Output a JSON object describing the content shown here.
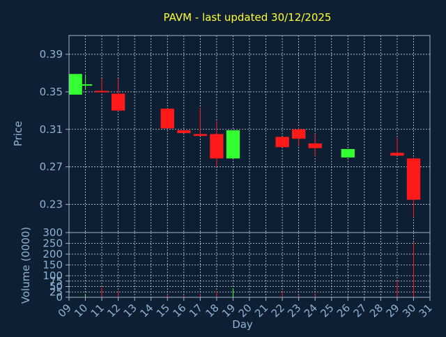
{
  "title": "PAVM - last updated 30/12/2025",
  "colors": {
    "background": "#0f1f33",
    "text": "#8fb3d6",
    "title": "#ffff33",
    "axis": "#9fb4cc",
    "grid": "#cfd8e3",
    "up": "#33ff33",
    "down": "#ff1a1a"
  },
  "chart_data": [
    {
      "type": "candlestick",
      "ylabel": "Price",
      "ylim": [
        0.2,
        0.41
      ],
      "yticks": [
        "0.23",
        "0.27",
        "0.31",
        "0.35",
        "0.39"
      ],
      "grid": true,
      "candles": [
        {
          "x": 9,
          "open": 0.347,
          "high": 0.369,
          "low": 0.347,
          "close": 0.369
        },
        {
          "x": 10,
          "open": 0.357,
          "high": 0.368,
          "low": 0.352,
          "close": 0.358
        },
        {
          "x": 11,
          "open": 0.351,
          "high": 0.364,
          "low": 0.349,
          "close": 0.35
        },
        {
          "x": 12,
          "open": 0.348,
          "high": 0.364,
          "low": 0.329,
          "close": 0.33
        },
        {
          "x": 15,
          "open": 0.332,
          "high": 0.332,
          "low": 0.311,
          "close": 0.311
        },
        {
          "x": 16,
          "open": 0.309,
          "high": 0.31,
          "low": 0.306,
          "close": 0.306
        },
        {
          "x": 17,
          "open": 0.305,
          "high": 0.333,
          "low": 0.303,
          "close": 0.303
        },
        {
          "x": 18,
          "open": 0.305,
          "high": 0.319,
          "low": 0.27,
          "close": 0.279
        },
        {
          "x": 19,
          "open": 0.279,
          "high": 0.309,
          "low": 0.279,
          "close": 0.309
        },
        {
          "x": 22,
          "open": 0.302,
          "high": 0.302,
          "low": 0.291,
          "close": 0.291
        },
        {
          "x": 23,
          "open": 0.31,
          "high": 0.312,
          "low": 0.292,
          "close": 0.3
        },
        {
          "x": 24,
          "open": 0.295,
          "high": 0.305,
          "low": 0.281,
          "close": 0.29
        },
        {
          "x": 26,
          "open": 0.28,
          "high": 0.289,
          "low": 0.28,
          "close": 0.289
        },
        {
          "x": 29,
          "open": 0.285,
          "high": 0.301,
          "low": 0.282,
          "close": 0.282
        },
        {
          "x": 30,
          "open": 0.279,
          "high": 0.279,
          "low": 0.216,
          "close": 0.235
        }
      ]
    },
    {
      "type": "bar",
      "ylabel": "Volume (0000)",
      "xlabel": "Day",
      "ylim": [
        0,
        300
      ],
      "yticks": [
        "0",
        "25",
        "50",
        "75",
        "100",
        "150",
        "200",
        "250",
        "300"
      ],
      "grid": true,
      "xticks": [
        "09",
        "10",
        "11",
        "12",
        "13",
        "14",
        "15",
        "16",
        "17",
        "18",
        "19",
        "20",
        "21",
        "22",
        "23",
        "24",
        "25",
        "26",
        "27",
        "28",
        "29",
        "30",
        "31"
      ],
      "bars": [
        {
          "x": 10,
          "value": 15,
          "dir": "up"
        },
        {
          "x": 11,
          "value": 45,
          "dir": "down"
        },
        {
          "x": 12,
          "value": 30,
          "dir": "down"
        },
        {
          "x": 15,
          "value": 12,
          "dir": "down"
        },
        {
          "x": 16,
          "value": 8,
          "dir": "down"
        },
        {
          "x": 17,
          "value": 15,
          "dir": "down"
        },
        {
          "x": 18,
          "value": 28,
          "dir": "down"
        },
        {
          "x": 19,
          "value": 42,
          "dir": "up"
        },
        {
          "x": 22,
          "value": 25,
          "dir": "down"
        },
        {
          "x": 23,
          "value": 12,
          "dir": "down"
        },
        {
          "x": 24,
          "value": 18,
          "dir": "down"
        },
        {
          "x": 26,
          "value": 6,
          "dir": "up"
        },
        {
          "x": 29,
          "value": 75,
          "dir": "down"
        },
        {
          "x": 30,
          "value": 252,
          "dir": "down"
        }
      ]
    }
  ]
}
